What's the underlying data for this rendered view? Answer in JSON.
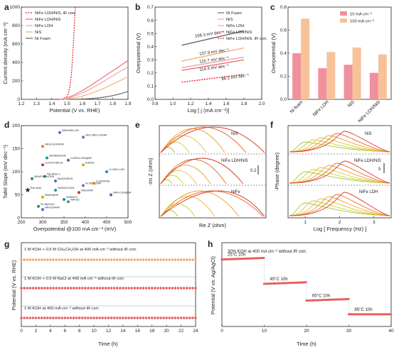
{
  "colors": {
    "nifeNis_ir": "#e8202a",
    "nifeNis": "#f06b7a",
    "nifeLdh": "#f0a0a8",
    "nis": "#f2b27a",
    "niFoam": "#666666",
    "bar10": "#f0909c",
    "bar100": "#f7c29a",
    "stability": "#e85a5a",
    "stability_top": "#f2a870"
  },
  "panels": {
    "a": {
      "label": "a",
      "chart_data": {
        "type": "line",
        "xlabel": "Potential (V vs. RHE)",
        "ylabel": "Current density (mA cm⁻²)",
        "xlim": [
          1.2,
          1.9
        ],
        "ylim": [
          0,
          1000
        ],
        "xticks": [
          "1.2",
          "1.3",
          "1.4",
          "1.5",
          "1.6",
          "1.7",
          "1.8",
          "1.9"
        ],
        "yticks": [
          "0",
          "200",
          "400",
          "600",
          "800",
          "1000"
        ],
        "series": [
          {
            "name": "NiFe LDH/NiS, iR corr.",
            "color_key": "nifeNis_ir",
            "dashed": true,
            "x": [
              1.4,
              1.45,
              1.48,
              1.5,
              1.51,
              1.52,
              1.53,
              1.54,
              1.545,
              1.55,
              1.555
            ],
            "y": [
              0,
              2,
              10,
              30,
              70,
              150,
              300,
              550,
              720,
              880,
              1000
            ]
          },
          {
            "name": "NiFe LDH/NiS",
            "color_key": "nifeNis",
            "x": [
              1.45,
              1.5,
              1.55,
              1.6,
              1.65,
              1.7,
              1.75,
              1.8,
              1.85,
              1.9
            ],
            "y": [
              0,
              15,
              50,
              95,
              145,
              200,
              255,
              310,
              365,
              420
            ]
          },
          {
            "name": "NiFe LDH",
            "color_key": "nifeLdh",
            "x": [
              1.45,
              1.5,
              1.55,
              1.6,
              1.65,
              1.7,
              1.75,
              1.8,
              1.85,
              1.9
            ],
            "y": [
              0,
              10,
              35,
              70,
              110,
              155,
              205,
              255,
              305,
              350
            ]
          },
          {
            "name": "NiS",
            "color_key": "nis",
            "x": [
              1.48,
              1.55,
              1.6,
              1.65,
              1.7,
              1.75,
              1.8,
              1.85,
              1.9
            ],
            "y": [
              0,
              15,
              35,
              60,
              90,
              125,
              165,
              205,
              245
            ]
          },
          {
            "name": "Ni Foam",
            "color_key": "niFoam",
            "x": [
              1.55,
              1.6,
              1.65,
              1.7,
              1.75,
              1.8,
              1.85,
              1.9
            ],
            "y": [
              0,
              3,
              8,
              15,
              25,
              40,
              60,
              85
            ]
          }
        ]
      }
    },
    "b": {
      "label": "b",
      "chart_data": {
        "type": "line",
        "xlabel": "Log [ j (mA cm⁻²)]",
        "ylabel": "Overpotential (V)",
        "xlim": [
          0.8,
          2.0
        ],
        "ylim": [
          0.0,
          0.7
        ],
        "xticks": [
          "0.8",
          "1.0",
          "1.2",
          "1.4",
          "1.6",
          "1.8",
          "2.0"
        ],
        "yticks": [
          "0.0",
          "0.1",
          "0.2",
          "0.3",
          "0.4",
          "0.5",
          "0.6",
          "0.7"
        ],
        "series": [
          {
            "name": "Ni Foam",
            "color_key": "niFoam",
            "x": [
              1.1,
              1.8
            ],
            "y": [
              0.41,
              0.52
            ]
          },
          {
            "name": "NiS",
            "color_key": "nis",
            "x": [
              1.1,
              1.8
            ],
            "y": [
              0.29,
              0.39
            ]
          },
          {
            "name": "NiFe LDH",
            "color_key": "nifeLdh",
            "x": [
              1.1,
              1.8
            ],
            "y": [
              0.24,
              0.32
            ]
          },
          {
            "name": "NiFe LDH/NiS",
            "color_key": "nifeNis",
            "x": [
              1.1,
              1.8
            ],
            "y": [
              0.22,
              0.3
            ]
          },
          {
            "name": "NiFe LDH/NiS, iR corr.",
            "color_key": "nifeNis_ir",
            "dashed": true,
            "x": [
              1.1,
              1.8
            ],
            "y": [
              0.13,
              0.19
            ]
          }
        ],
        "annotations": [
          {
            "text": "158.3 mV dec⁻¹",
            "x": 1.25,
            "y": 0.47
          },
          {
            "text": "137.9 mV dec⁻¹",
            "x": 1.3,
            "y": 0.335
          },
          {
            "text": "115.7 mV dec⁻¹",
            "x": 1.3,
            "y": 0.275
          },
          {
            "text": "114.3 mV dec⁻¹",
            "x": 1.3,
            "y": 0.215
          },
          {
            "text": "86.1 mV dec⁻¹",
            "x": 1.55,
            "y": 0.145
          }
        ]
      }
    },
    "c": {
      "label": "c",
      "chart_data": {
        "type": "bar",
        "ylabel": "Overpotential (V)",
        "ylim": [
          0.0,
          0.8
        ],
        "yticks": [
          "0.0",
          "0.2",
          "0.4",
          "0.6",
          "0.8"
        ],
        "categories": [
          "Ni foam",
          "NiFe LDH",
          "NiS",
          "NiFe LDH/NiS"
        ],
        "series": [
          {
            "name": "10 mA cm⁻²",
            "color_key": "bar10",
            "values": [
              0.4,
              0.27,
              0.3,
              0.23
            ]
          },
          {
            "name": "100 mA cm⁻²",
            "color_key": "bar100",
            "values": [
              0.7,
              0.41,
              0.45,
              0.39
            ]
          }
        ]
      }
    },
    "d": {
      "label": "d",
      "chart_data": {
        "type": "scatter",
        "xlabel": "Overpotential @100 mA cm⁻² (mV)",
        "ylabel": "Tafel Slope (mV dec⁻¹)",
        "xlim": [
          250,
          500
        ],
        "ylim": [
          0,
          200
        ],
        "xticks": [
          "250",
          "300",
          "350",
          "400",
          "450",
          "500"
        ],
        "yticks": [
          "0",
          "50",
          "100",
          "150",
          "200"
        ],
        "points": [
          {
            "label": "This work",
            "x": 265,
            "y": 60,
            "star": true
          },
          {
            "label": "NiFe/NiFe-OH",
            "x": 340,
            "y": 185
          },
          {
            "label": "NiCo-NiFe-OH/NF",
            "x": 395,
            "y": 175
          },
          {
            "label": "NiFeCoOOH/NF",
            "x": 300,
            "y": 155
          },
          {
            "label": "NiO/Ni3S2/NF",
            "x": 310,
            "y": 130
          },
          {
            "label": "CoOOH-NiFeS",
            "x": 300,
            "y": 115
          },
          {
            "label": "Co3Fe0.2S4@NF",
            "x": 360,
            "y": 125
          },
          {
            "label": "FeNiS2",
            "x": 395,
            "y": 115
          },
          {
            "label": "Cr-NiFe-LDH",
            "x": 450,
            "y": 100
          },
          {
            "label": "Ni0.9Fe0.1",
            "x": 305,
            "y": 90
          },
          {
            "label": "NiFeP/NiFeOOH",
            "x": 275,
            "y": 85
          },
          {
            "label": "MoS2/NiFeS",
            "x": 330,
            "y": 80
          },
          {
            "label": "Fe-Ni3S2/NF",
            "x": 395,
            "y": 70
          },
          {
            "label": "Co3O4/NiS",
            "x": 420,
            "y": 75
          },
          {
            "label": "FeNiS/Co3O4",
            "x": 330,
            "y": 60
          },
          {
            "label": "NiFeO/NF",
            "x": 385,
            "y": 55
          },
          {
            "label": "NiFe-LDH@NF",
            "x": 460,
            "y": 50
          },
          {
            "label": "Ni3S2@NF",
            "x": 300,
            "y": 45
          },
          {
            "label": "Ni3S2/Fe",
            "x": 350,
            "y": 40
          },
          {
            "label": "NiFeS2",
            "x": 360,
            "y": 35
          },
          {
            "label": "Fe-Ni(OH)2",
            "x": 290,
            "y": 25
          },
          {
            "label": "NiFe2O4/NF",
            "x": 300,
            "y": 18
          }
        ]
      }
    },
    "e": {
      "label": "e",
      "xlabel": "Re Z (ohm)",
      "ylabel": "-Im Z (ohm)",
      "sublabels": [
        "NiS",
        "NiFe LDH/NiS",
        "NiFe"
      ],
      "scale": "0.2"
    },
    "f": {
      "label": "f",
      "xlabel": "Log [ Frequency (Hz) ]",
      "ylabel": "-Phase (degree)",
      "xticks": [
        "1",
        "2",
        "3"
      ],
      "sublabels": [
        "NiS",
        "NiFe LDH/NiS",
        "NiFe LDH"
      ],
      "scale": "5"
    },
    "g": {
      "label": "g",
      "chart_data": {
        "type": "scatter",
        "xlabel": "Time (h)",
        "ylabel": "Potential (V vs. RHE)",
        "xlim": [
          0,
          24
        ],
        "xticks": [
          "0",
          "2",
          "4",
          "6",
          "8",
          "10",
          "12",
          "14",
          "16",
          "18",
          "20",
          "22",
          "24"
        ],
        "series": [
          {
            "name": "1 M KOH + 0.5 M CH₃CH₂OH at 400 mA cm⁻² without iR corr.",
            "color_key": "stability_top",
            "level": 1.8
          },
          {
            "name": "1 M KOH + 0.5 M NaCl at 400 mA cm⁻² without iR corr.",
            "color_key": "stability",
            "level": 1.75
          },
          {
            "name": "1 M KOH at 400 mA cm⁻² without iR corr.",
            "color_key": "stability",
            "level": 1.7
          }
        ]
      }
    },
    "h": {
      "label": "h",
      "chart_data": {
        "type": "scatter",
        "title": "30% KOH at 400 mA cm⁻² without iR corr.",
        "xlabel": "Time (h)",
        "ylabel": "Potential (V vs. Ag/AgCl)",
        "xlim": [
          0,
          40
        ],
        "xticks": [
          "0",
          "10",
          "20",
          "30",
          "40"
        ],
        "segments": [
          {
            "label": "25°C 10h",
            "x": [
              0,
              10
            ],
            "y": [
              0.74,
              0.75
            ]
          },
          {
            "label": "45°C 10h",
            "x": [
              10,
              20
            ],
            "y": [
              0.58,
              0.59
            ]
          },
          {
            "label": "65°C 10h",
            "x": [
              20,
              30
            ],
            "y": [
              0.47,
              0.48
            ]
          },
          {
            "label": "85°C 10h",
            "x": [
              30,
              40
            ],
            "y": [
              0.38,
              0.38
            ]
          }
        ]
      }
    }
  }
}
